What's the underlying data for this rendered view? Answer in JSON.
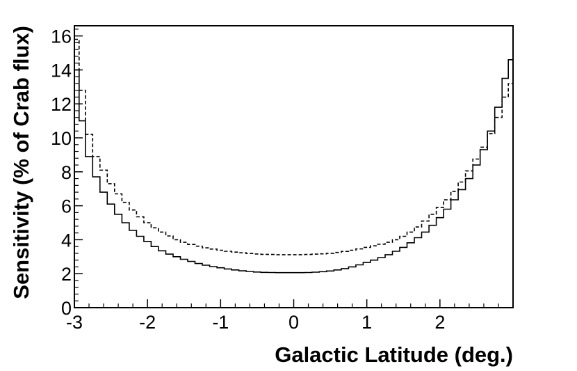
{
  "chart_data": {
    "type": "line",
    "title": "",
    "xlabel": "Galactic Latitude (deg.)",
    "ylabel": "Sensitivity (% of Crab flux)",
    "xlim": [
      -3,
      3
    ],
    "ylim": [
      0,
      16.6
    ],
    "x_ticks": [
      -3,
      -2,
      -1,
      0,
      1,
      2
    ],
    "y_ticks": [
      0,
      2,
      4,
      6,
      8,
      10,
      12,
      14,
      16
    ],
    "x_tick_labels": [
      "-3",
      "-2",
      "-1",
      "0",
      "1",
      "2"
    ],
    "y_tick_labels": [
      "0",
      "2",
      "4",
      "6",
      "8",
      "10",
      "12",
      "14",
      "16"
    ],
    "grid": false,
    "legend": "none",
    "series": [
      {
        "style": "solid",
        "x": [
          -2.97,
          -2.9,
          -2.8,
          -2.7,
          -2.6,
          -2.5,
          -2.4,
          -2.3,
          -2.2,
          -2.1,
          -2.0,
          -1.9,
          -1.8,
          -1.7,
          -1.6,
          -1.5,
          -1.4,
          -1.3,
          -1.2,
          -1.1,
          -1.0,
          -0.9,
          -0.8,
          -0.7,
          -0.6,
          -0.5,
          -0.4,
          -0.3,
          -0.2,
          -0.1,
          0.0,
          0.1,
          0.2,
          0.3,
          0.4,
          0.5,
          0.6,
          0.7,
          0.8,
          0.9,
          1.0,
          1.1,
          1.2,
          1.3,
          1.4,
          1.5,
          1.6,
          1.7,
          1.8,
          1.9,
          2.0,
          2.1,
          2.2,
          2.3,
          2.4,
          2.5,
          2.6,
          2.7,
          2.8,
          2.9,
          2.97
        ],
        "y": [
          14.0,
          11.0,
          8.9,
          7.7,
          6.8,
          6.1,
          5.5,
          5.0,
          4.55,
          4.2,
          3.9,
          3.6,
          3.35,
          3.15,
          3.0,
          2.85,
          2.72,
          2.6,
          2.5,
          2.42,
          2.35,
          2.28,
          2.22,
          2.17,
          2.13,
          2.1,
          2.08,
          2.07,
          2.06,
          2.06,
          2.06,
          2.06,
          2.07,
          2.09,
          2.12,
          2.16,
          2.22,
          2.3,
          2.4,
          2.52,
          2.66,
          2.8,
          2.95,
          3.12,
          3.32,
          3.55,
          3.82,
          4.12,
          4.45,
          4.85,
          5.3,
          5.8,
          6.35,
          6.95,
          7.6,
          8.4,
          9.3,
          10.4,
          11.8,
          13.5,
          14.6
        ]
      },
      {
        "style": "dashed",
        "x": [
          -2.97,
          -2.9,
          -2.8,
          -2.7,
          -2.6,
          -2.5,
          -2.4,
          -2.3,
          -2.2,
          -2.1,
          -2.0,
          -1.9,
          -1.8,
          -1.7,
          -1.6,
          -1.5,
          -1.4,
          -1.3,
          -1.2,
          -1.1,
          -1.0,
          -0.9,
          -0.8,
          -0.7,
          -0.6,
          -0.5,
          -0.4,
          -0.3,
          -0.2,
          -0.1,
          0.0,
          0.1,
          0.2,
          0.3,
          0.4,
          0.5,
          0.6,
          0.7,
          0.8,
          0.9,
          1.0,
          1.1,
          1.2,
          1.3,
          1.4,
          1.5,
          1.6,
          1.7,
          1.8,
          1.9,
          2.0,
          2.1,
          2.2,
          2.3,
          2.4,
          2.5,
          2.6,
          2.7,
          2.8,
          2.9,
          2.97
        ],
        "y": [
          15.8,
          12.8,
          10.2,
          8.9,
          8.1,
          7.3,
          6.7,
          6.2,
          5.75,
          5.35,
          5.0,
          4.7,
          4.45,
          4.22,
          4.0,
          3.85,
          3.72,
          3.62,
          3.52,
          3.45,
          3.38,
          3.32,
          3.27,
          3.23,
          3.19,
          3.16,
          3.14,
          3.13,
          3.12,
          3.12,
          3.12,
          3.12,
          3.13,
          3.15,
          3.17,
          3.2,
          3.25,
          3.31,
          3.38,
          3.46,
          3.55,
          3.64,
          3.74,
          3.85,
          4.0,
          4.2,
          4.45,
          4.75,
          5.1,
          5.5,
          5.9,
          6.35,
          6.85,
          7.4,
          8.05,
          8.75,
          9.45,
          10.25,
          11.2,
          12.4,
          13.2
        ]
      }
    ]
  }
}
